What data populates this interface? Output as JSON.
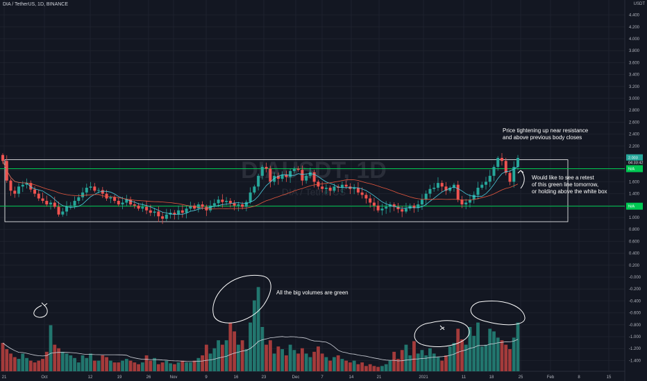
{
  "header": {
    "symbol_line": "DIA / TetherUS, 1D, BINANCE"
  },
  "axis_unit": "USDT",
  "watermark": {
    "symbol": "DIAUSDT, 1D",
    "name": "DIA / TetherUS"
  },
  "price_tags": {
    "last": "2.003",
    "countdown": "04:33:42",
    "upper": "N/A",
    "lower": "N/A"
  },
  "annotations": {
    "price": "Price tightening up near resistance\nand above previous body closes",
    "retest": "Would like to see a retest\nof this green line tomorrow,\nor holding above the white box",
    "volumes": "All the big volumes are green"
  },
  "colors": {
    "bg": "#131722",
    "up": "#26a69a",
    "down": "#ef5350",
    "level": "#00c853",
    "box": "#ffffff",
    "ma_red": "#e8583f",
    "ma_cyan": "#4dd0e1",
    "text": "#d1d4dc"
  },
  "chart_data": {
    "type": "candlestick",
    "title": "DIA / TetherUS, 1D, BINANCE",
    "y_unit": "USDT",
    "x_ticks": [
      "21",
      "Oct",
      "12",
      "19",
      "26",
      "Nov",
      "9",
      "16",
      "23",
      "Dec",
      "7",
      "14",
      "21",
      "2021",
      "11",
      "18",
      "25",
      "Feb",
      "8",
      "15"
    ],
    "y_ticks": [
      "4.400",
      "4.200",
      "4.000",
      "3.800",
      "3.600",
      "3.400",
      "3.200",
      "3.000",
      "2.800",
      "2.600",
      "2.400",
      "2.200",
      "2.000",
      "1.800",
      "1.600",
      "1.400",
      "1.200",
      "1.000",
      "0.800",
      "0.600",
      "0.400",
      "0.200",
      "-0.000",
      "-0.200",
      "-0.400",
      "-0.600",
      "-0.800",
      "-1.000",
      "-1.200",
      "-1.400"
    ],
    "levels": {
      "resistance": 1.82,
      "support": 1.19
    },
    "range_box": {
      "top": 1.97,
      "bottom": 0.93
    },
    "series": [
      {
        "name": "price",
        "close": [
          1.95,
          1.62,
          1.45,
          1.4,
          1.52,
          1.55,
          1.58,
          1.47,
          1.4,
          1.32,
          1.28,
          1.22,
          1.25,
          1.18,
          1.05,
          1.1,
          1.18,
          1.2,
          1.28,
          1.34,
          1.42,
          1.5,
          1.52,
          1.45,
          1.46,
          1.4,
          1.32,
          1.34,
          1.28,
          1.22,
          1.25,
          1.3,
          1.22,
          1.2,
          1.15,
          1.18,
          1.12,
          1.08,
          1.1,
          1.02,
          0.98,
          1.05,
          1.08,
          1.05,
          1.12,
          1.08,
          1.15,
          1.2,
          1.15,
          1.22,
          1.18,
          1.12,
          1.2,
          1.24,
          1.3,
          1.26,
          1.28,
          1.24,
          1.2,
          1.22,
          1.18,
          1.26,
          1.42,
          1.52,
          1.7,
          1.85,
          1.82,
          1.6,
          1.7,
          1.65,
          1.72,
          1.68,
          1.78,
          1.82,
          1.8,
          1.62,
          1.7,
          1.76,
          1.6,
          1.52,
          1.48,
          1.5,
          1.45,
          1.52,
          1.5,
          1.55,
          1.52,
          1.48,
          1.5,
          1.42,
          1.38,
          1.32,
          1.25,
          1.2,
          1.12,
          1.15,
          1.18,
          1.22,
          1.18,
          1.14,
          1.1,
          1.15,
          1.2,
          1.16,
          1.22,
          1.3,
          1.4,
          1.48,
          1.5,
          1.58,
          1.52,
          1.45,
          1.5,
          1.55,
          1.3,
          1.22,
          1.25,
          1.3,
          1.38,
          1.5,
          1.55,
          1.6,
          1.7,
          1.85,
          2.0,
          1.95,
          1.75,
          1.6,
          1.85,
          2.0
        ]
      },
      {
        "name": "volume",
        "values": [
          0.32,
          0.25,
          0.2,
          0.16,
          0.14,
          0.2,
          0.15,
          0.12,
          0.1,
          0.12,
          0.14,
          0.22,
          0.52,
          0.3,
          0.26,
          0.22,
          0.2,
          0.18,
          0.15,
          0.1,
          0.18,
          0.15,
          0.2,
          0.12,
          0.12,
          0.18,
          0.16,
          0.12,
          0.1,
          0.1,
          0.12,
          0.14,
          0.12,
          0.1,
          0.08,
          0.1,
          0.18,
          0.12,
          0.15,
          0.08,
          0.1,
          0.12,
          0.09,
          0.08,
          0.1,
          0.12,
          0.1,
          0.1,
          0.12,
          0.15,
          0.18,
          0.3,
          0.2,
          0.26,
          0.35,
          0.3,
          0.35,
          0.55,
          0.45,
          0.3,
          0.35,
          0.25,
          0.55,
          0.8,
          0.95,
          0.5,
          0.3,
          0.35,
          0.2,
          0.28,
          0.25,
          0.18,
          0.3,
          0.24,
          0.2,
          0.26,
          0.2,
          0.16,
          0.22,
          0.28,
          0.2,
          0.16,
          0.12,
          0.16,
          0.18,
          0.14,
          0.12,
          0.1,
          0.12,
          0.08,
          0.1,
          0.06,
          0.08,
          0.06,
          0.05,
          0.06,
          0.08,
          0.12,
          0.22,
          0.14,
          0.24,
          0.3,
          0.18,
          0.34,
          0.2,
          0.24,
          0.18,
          0.26,
          0.2,
          0.16,
          0.12,
          0.18,
          0.28,
          0.32,
          0.48,
          0.36,
          0.3,
          0.5,
          0.4,
          0.55,
          0.28,
          0.3,
          0.48,
          0.45,
          0.38,
          0.35,
          0.3,
          0.25,
          0.38,
          0.55
        ]
      }
    ]
  }
}
